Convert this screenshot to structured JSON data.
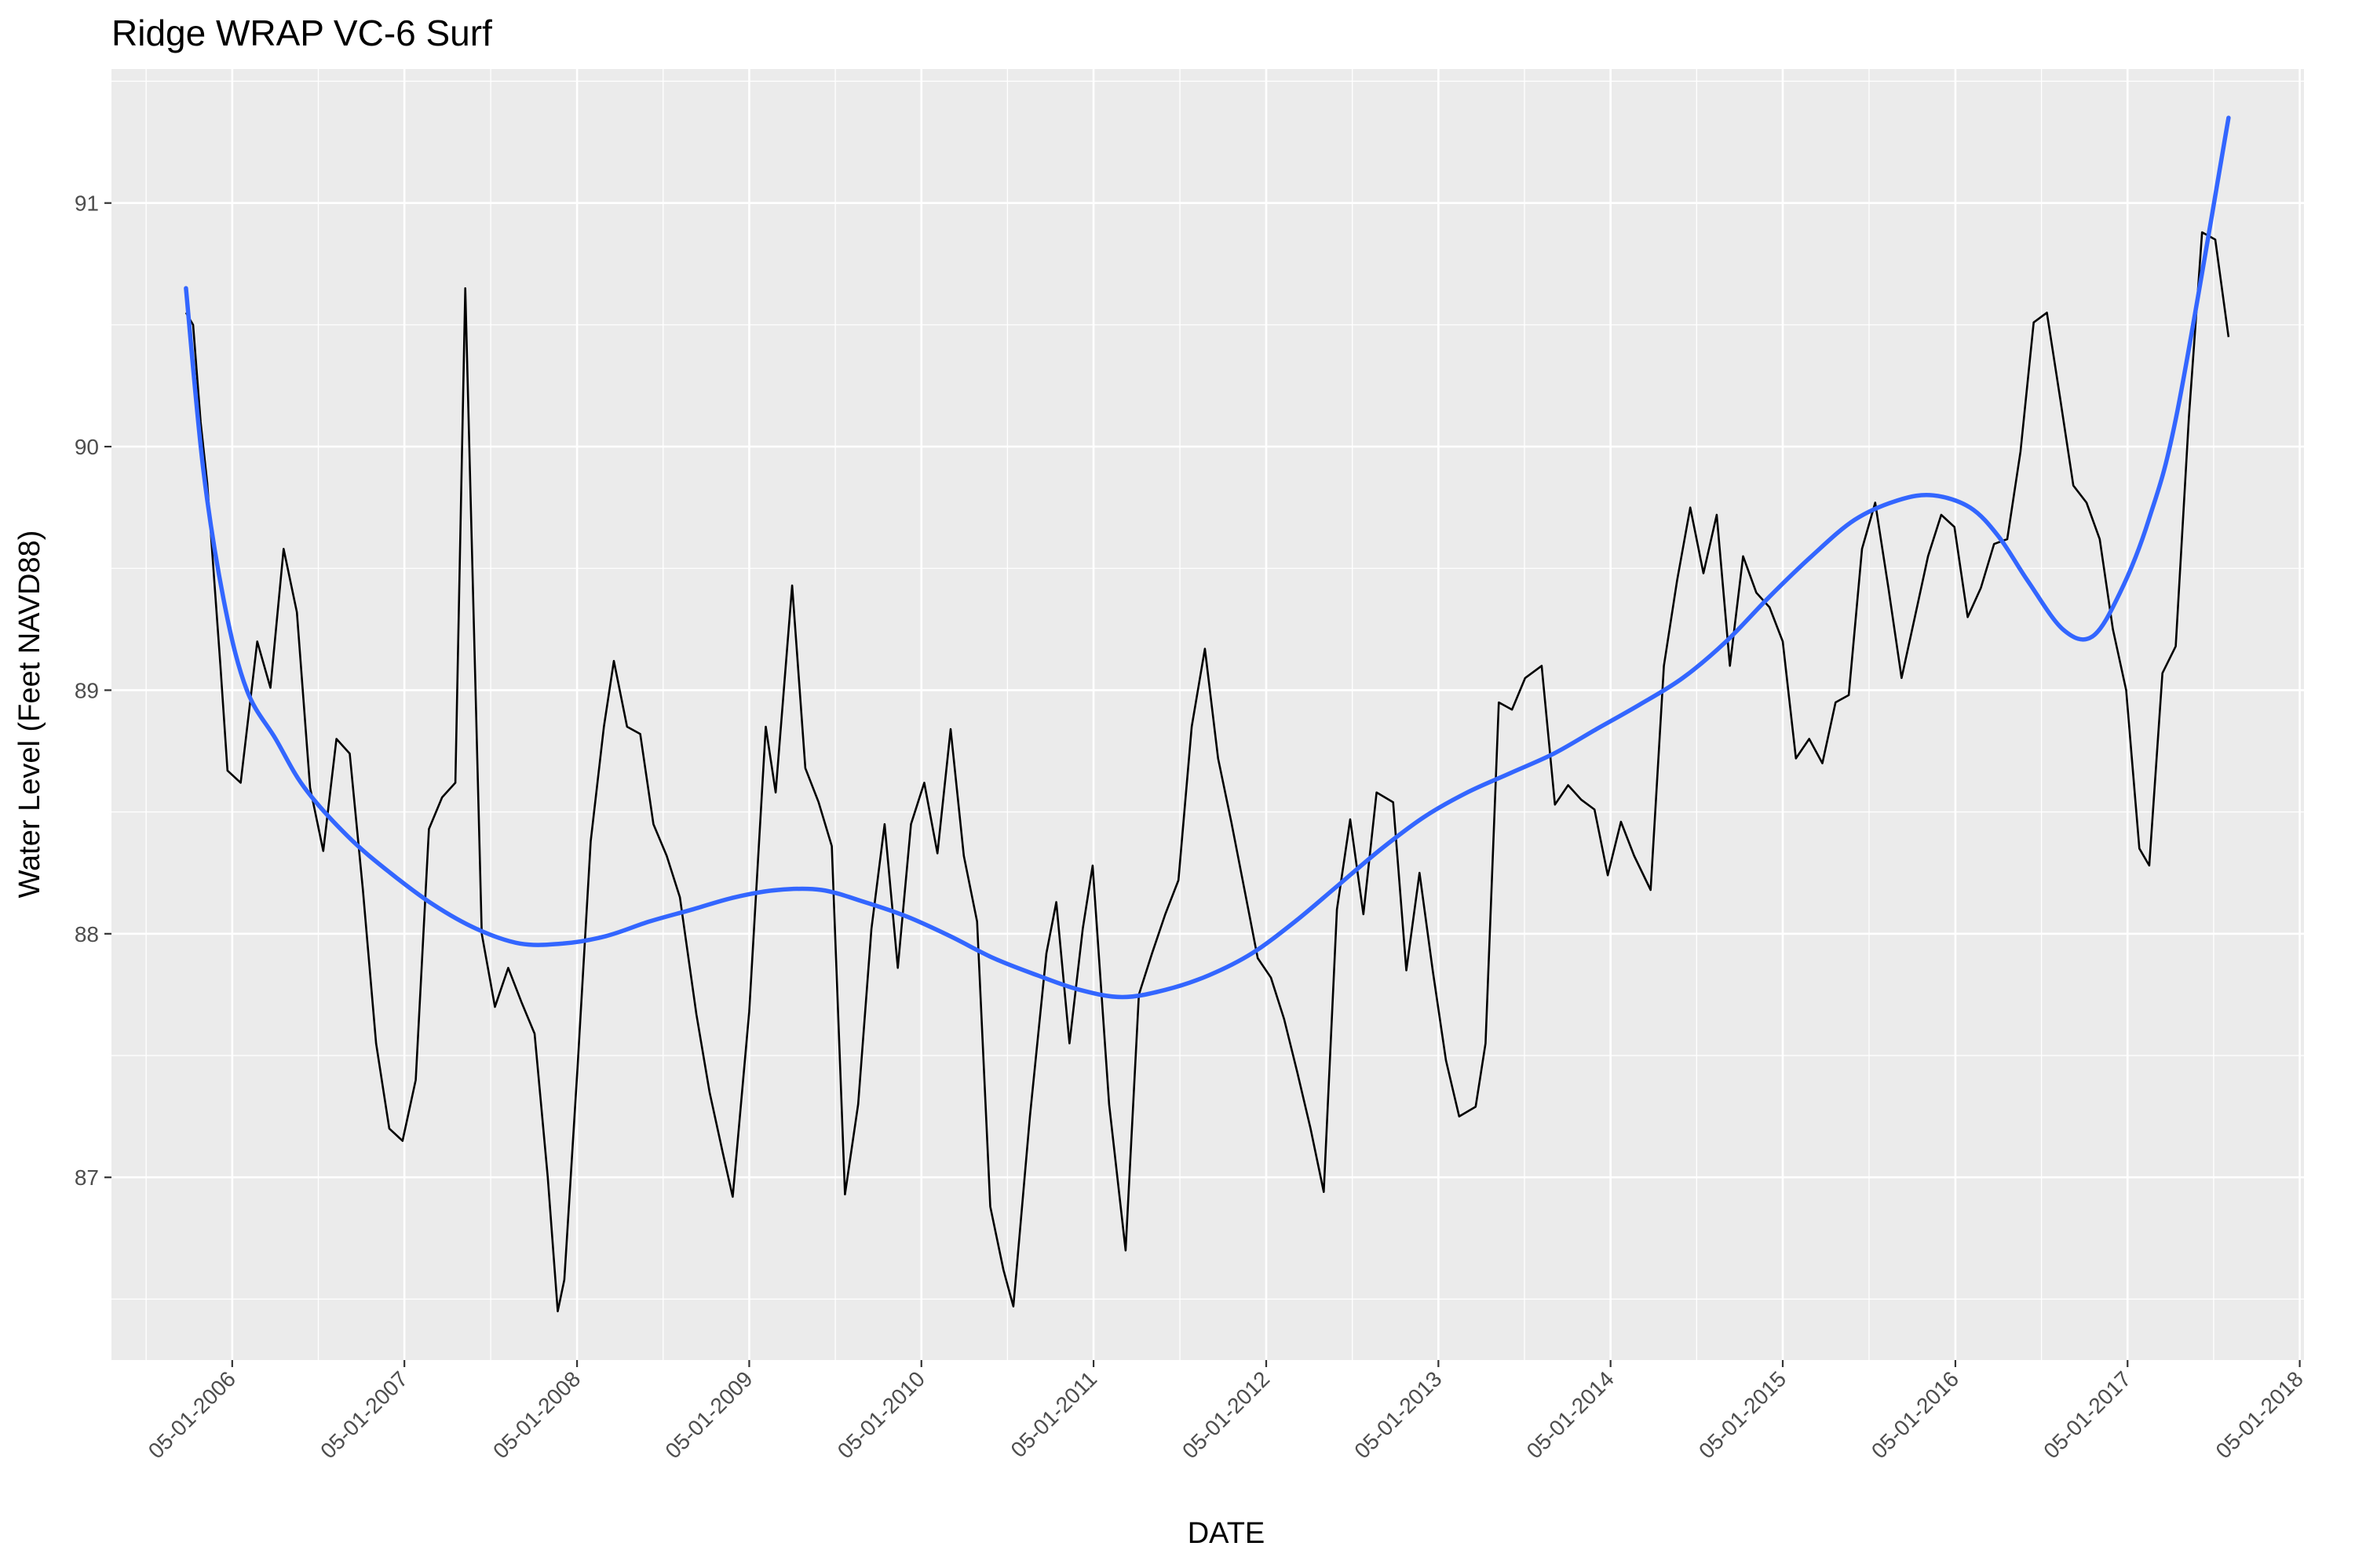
{
  "chart_data": {
    "type": "line",
    "title": "Ridge WRAP VC-6 Surf",
    "xlabel": "DATE",
    "ylabel": "Water Level (Feet NAVD88)",
    "x_type": "date",
    "xlim": [
      "2005-08-18",
      "2018-05-10"
    ],
    "ylim": [
      86.25,
      91.55
    ],
    "x_ticks": [
      "2006-05-01",
      "2007-05-01",
      "2008-05-01",
      "2009-05-01",
      "2010-05-01",
      "2011-05-01",
      "2012-05-01",
      "2013-05-01",
      "2014-05-01",
      "2015-05-01",
      "2016-05-01",
      "2017-05-01",
      "2018-05-01"
    ],
    "x_tick_labels": [
      "05-01-2006",
      "05-01-2007",
      "05-01-2008",
      "05-01-2009",
      "05-01-2010",
      "05-01-2011",
      "05-01-2012",
      "05-01-2013",
      "05-01-2014",
      "05-01-2015",
      "05-01-2016",
      "05-01-2017",
      "05-01-2018"
    ],
    "y_ticks": [
      87,
      88,
      89,
      90,
      91
    ],
    "y_tick_labels": [
      "87",
      "88",
      "89",
      "90",
      "91"
    ],
    "grid": true,
    "background": "#ebebeb",
    "series": [
      {
        "color": "#000000",
        "style": "line",
        "points": [
          [
            "2006-01-23",
            90.55
          ],
          [
            "2006-02-07",
            90.5
          ],
          [
            "2006-02-23",
            90.1
          ],
          [
            "2006-03-09",
            89.85
          ],
          [
            "2006-04-06",
            89.1
          ],
          [
            "2006-04-21",
            88.67
          ],
          [
            "2006-05-19",
            88.62
          ],
          [
            "2006-06-23",
            89.2
          ],
          [
            "2006-07-21",
            89.01
          ],
          [
            "2006-08-18",
            89.58
          ],
          [
            "2006-09-15",
            89.32
          ],
          [
            "2006-10-13",
            88.6
          ],
          [
            "2006-11-10",
            88.34
          ],
          [
            "2006-12-08",
            88.8
          ],
          [
            "2007-01-05",
            88.74
          ],
          [
            "2007-02-02",
            88.18
          ],
          [
            "2007-03-02",
            87.55
          ],
          [
            "2007-03-30",
            87.2
          ],
          [
            "2007-04-27",
            87.15
          ],
          [
            "2007-05-25",
            87.4
          ],
          [
            "2007-06-22",
            88.43
          ],
          [
            "2007-07-20",
            88.56
          ],
          [
            "2007-08-17",
            88.62
          ],
          [
            "2007-09-07",
            90.65
          ],
          [
            "2007-10-12",
            88.0
          ],
          [
            "2007-11-09",
            87.7
          ],
          [
            "2007-12-07",
            87.86
          ],
          [
            "2008-01-04",
            87.72
          ],
          [
            "2008-02-01",
            87.59
          ],
          [
            "2008-02-29",
            87.0
          ],
          [
            "2008-03-21",
            86.45
          ],
          [
            "2008-04-04",
            86.58
          ],
          [
            "2008-05-02",
            87.45
          ],
          [
            "2008-05-30",
            88.38
          ],
          [
            "2008-06-27",
            88.85
          ],
          [
            "2008-07-18",
            89.12
          ],
          [
            "2008-08-15",
            88.85
          ],
          [
            "2008-09-12",
            88.82
          ],
          [
            "2008-10-10",
            88.45
          ],
          [
            "2008-11-07",
            88.32
          ],
          [
            "2008-12-05",
            88.15
          ],
          [
            "2009-01-09",
            87.67
          ],
          [
            "2009-02-06",
            87.35
          ],
          [
            "2009-03-06",
            87.1
          ],
          [
            "2009-03-27",
            86.92
          ],
          [
            "2009-05-01",
            87.68
          ],
          [
            "2009-06-05",
            88.85
          ],
          [
            "2009-06-26",
            88.58
          ],
          [
            "2009-07-31",
            89.43
          ],
          [
            "2009-08-28",
            88.68
          ],
          [
            "2009-09-25",
            88.54
          ],
          [
            "2009-10-23",
            88.36
          ],
          [
            "2009-11-20",
            86.93
          ],
          [
            "2009-12-18",
            87.3
          ],
          [
            "2010-01-15",
            88.02
          ],
          [
            "2010-02-12",
            88.45
          ],
          [
            "2010-03-12",
            87.86
          ],
          [
            "2010-04-09",
            88.45
          ],
          [
            "2010-05-07",
            88.62
          ],
          [
            "2010-06-04",
            88.33
          ],
          [
            "2010-07-02",
            88.84
          ],
          [
            "2010-07-30",
            88.32
          ],
          [
            "2010-08-27",
            88.05
          ],
          [
            "2010-09-24",
            86.88
          ],
          [
            "2010-10-22",
            86.62
          ],
          [
            "2010-11-12",
            86.47
          ],
          [
            "2010-12-17",
            87.25
          ],
          [
            "2011-01-21",
            87.92
          ],
          [
            "2011-02-11",
            88.13
          ],
          [
            "2011-03-11",
            87.55
          ],
          [
            "2011-04-08",
            88.02
          ],
          [
            "2011-04-29",
            88.28
          ],
          [
            "2011-06-03",
            87.3
          ],
          [
            "2011-07-08",
            86.7
          ],
          [
            "2011-08-05",
            87.75
          ],
          [
            "2011-09-02",
            87.92
          ],
          [
            "2011-09-30",
            88.08
          ],
          [
            "2011-10-28",
            88.22
          ],
          [
            "2011-11-25",
            88.85
          ],
          [
            "2011-12-23",
            89.17
          ],
          [
            "2012-01-20",
            88.72
          ],
          [
            "2012-02-17",
            88.46
          ],
          [
            "2012-03-16",
            88.18
          ],
          [
            "2012-04-13",
            87.9
          ],
          [
            "2012-05-11",
            87.82
          ],
          [
            "2012-06-08",
            87.65
          ],
          [
            "2012-07-06",
            87.43
          ],
          [
            "2012-08-03",
            87.2
          ],
          [
            "2012-08-31",
            86.94
          ],
          [
            "2012-09-28",
            88.1
          ],
          [
            "2012-10-26",
            88.47
          ],
          [
            "2012-11-23",
            88.08
          ],
          [
            "2012-12-21",
            88.58
          ],
          [
            "2013-01-25",
            88.54
          ],
          [
            "2013-02-22",
            87.85
          ],
          [
            "2013-03-22",
            88.25
          ],
          [
            "2013-04-19",
            87.85
          ],
          [
            "2013-05-17",
            87.48
          ],
          [
            "2013-06-14",
            87.25
          ],
          [
            "2013-07-19",
            87.29
          ],
          [
            "2013-08-09",
            87.55
          ],
          [
            "2013-09-06",
            88.95
          ],
          [
            "2013-10-04",
            88.92
          ],
          [
            "2013-11-01",
            89.05
          ],
          [
            "2013-12-06",
            89.1
          ],
          [
            "2014-01-03",
            88.53
          ],
          [
            "2014-01-31",
            88.61
          ],
          [
            "2014-02-28",
            88.55
          ],
          [
            "2014-03-28",
            88.51
          ],
          [
            "2014-04-25",
            88.24
          ],
          [
            "2014-05-23",
            88.46
          ],
          [
            "2014-06-20",
            88.32
          ],
          [
            "2014-07-25",
            88.18
          ],
          [
            "2014-08-22",
            89.1
          ],
          [
            "2014-09-19",
            89.45
          ],
          [
            "2014-10-17",
            89.75
          ],
          [
            "2014-11-14",
            89.48
          ],
          [
            "2014-12-12",
            89.72
          ],
          [
            "2015-01-09",
            89.1
          ],
          [
            "2015-02-06",
            89.55
          ],
          [
            "2015-03-06",
            89.4
          ],
          [
            "2015-04-03",
            89.34
          ],
          [
            "2015-05-01",
            89.2
          ],
          [
            "2015-05-29",
            88.72
          ],
          [
            "2015-06-26",
            88.8
          ],
          [
            "2015-07-24",
            88.7
          ],
          [
            "2015-08-21",
            88.95
          ],
          [
            "2015-09-18",
            88.98
          ],
          [
            "2015-10-16",
            89.58
          ],
          [
            "2015-11-13",
            89.77
          ],
          [
            "2015-12-11",
            89.42
          ],
          [
            "2016-01-08",
            89.05
          ],
          [
            "2016-02-05",
            89.3
          ],
          [
            "2016-03-04",
            89.55
          ],
          [
            "2016-04-01",
            89.72
          ],
          [
            "2016-04-29",
            89.67
          ],
          [
            "2016-05-27",
            89.3
          ],
          [
            "2016-06-24",
            89.42
          ],
          [
            "2016-07-22",
            89.6
          ],
          [
            "2016-08-19",
            89.62
          ],
          [
            "2016-09-16",
            89.98
          ],
          [
            "2016-10-14",
            90.51
          ],
          [
            "2016-11-11",
            90.55
          ],
          [
            "2016-12-09",
            90.2
          ],
          [
            "2017-01-06",
            89.84
          ],
          [
            "2017-02-03",
            89.77
          ],
          [
            "2017-03-03",
            89.62
          ],
          [
            "2017-03-31",
            89.25
          ],
          [
            "2017-04-28",
            89.0
          ],
          [
            "2017-05-26",
            88.35
          ],
          [
            "2017-06-16",
            88.28
          ],
          [
            "2017-07-14",
            89.07
          ],
          [
            "2017-08-11",
            89.18
          ],
          [
            "2017-09-08",
            90.12
          ],
          [
            "2017-10-06",
            90.88
          ],
          [
            "2017-11-03",
            90.85
          ],
          [
            "2017-12-01",
            90.45
          ]
        ]
      },
      {
        "color": "#3366ff",
        "style": "smooth",
        "points": [
          [
            "2006-01-23",
            90.65
          ],
          [
            "2006-03-01",
            89.9
          ],
          [
            "2006-04-15",
            89.35
          ],
          [
            "2006-06-01",
            89.0
          ],
          [
            "2006-08-01",
            88.8
          ],
          [
            "2006-10-01",
            88.6
          ],
          [
            "2007-01-01",
            88.4
          ],
          [
            "2007-04-01",
            88.25
          ],
          [
            "2007-07-01",
            88.12
          ],
          [
            "2007-10-01",
            88.02
          ],
          [
            "2008-01-01",
            87.96
          ],
          [
            "2008-04-01",
            87.96
          ],
          [
            "2008-07-01",
            87.99
          ],
          [
            "2008-10-01",
            88.05
          ],
          [
            "2009-01-01",
            88.1
          ],
          [
            "2009-04-01",
            88.15
          ],
          [
            "2009-07-01",
            88.18
          ],
          [
            "2009-10-01",
            88.18
          ],
          [
            "2010-01-01",
            88.13
          ],
          [
            "2010-04-01",
            88.07
          ],
          [
            "2010-07-01",
            87.99
          ],
          [
            "2010-10-01",
            87.9
          ],
          [
            "2011-01-01",
            87.83
          ],
          [
            "2011-04-01",
            87.77
          ],
          [
            "2011-07-01",
            87.74
          ],
          [
            "2011-10-01",
            87.77
          ],
          [
            "2012-01-01",
            87.83
          ],
          [
            "2012-04-01",
            87.92
          ],
          [
            "2012-07-01",
            88.05
          ],
          [
            "2012-10-01",
            88.2
          ],
          [
            "2013-01-01",
            88.35
          ],
          [
            "2013-04-01",
            88.48
          ],
          [
            "2013-07-01",
            88.58
          ],
          [
            "2013-10-01",
            88.66
          ],
          [
            "2014-01-01",
            88.74
          ],
          [
            "2014-04-01",
            88.84
          ],
          [
            "2014-07-01",
            88.94
          ],
          [
            "2014-10-01",
            89.05
          ],
          [
            "2015-01-01",
            89.2
          ],
          [
            "2015-04-01",
            89.38
          ],
          [
            "2015-07-01",
            89.55
          ],
          [
            "2015-10-01",
            89.7
          ],
          [
            "2016-01-01",
            89.78
          ],
          [
            "2016-03-15",
            89.8
          ],
          [
            "2016-06-01",
            89.75
          ],
          [
            "2016-08-01",
            89.63
          ],
          [
            "2016-10-01",
            89.45
          ],
          [
            "2016-12-15",
            89.25
          ],
          [
            "2017-02-15",
            89.22
          ],
          [
            "2017-04-15",
            89.4
          ],
          [
            "2017-06-15",
            89.7
          ],
          [
            "2017-08-15",
            90.15
          ],
          [
            "2017-12-01",
            91.35
          ]
        ]
      }
    ]
  }
}
